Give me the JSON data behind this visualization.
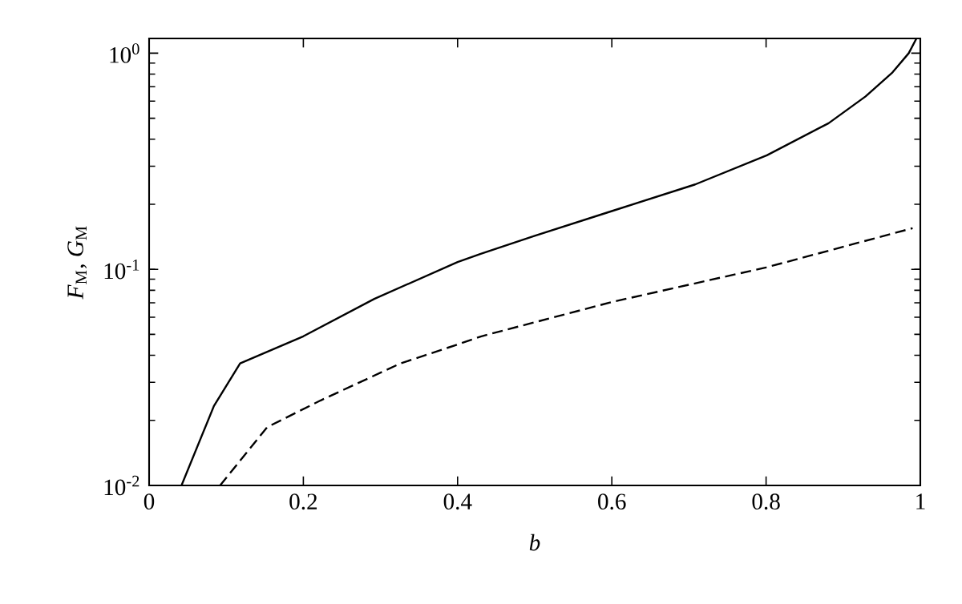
{
  "chart_data": {
    "type": "line",
    "xlabel": "b",
    "ylabel": "*F*$_{M}$, *G*$_{M}$",
    "log": "y",
    "grid": false,
    "marker": "none",
    "xlim": [
      0,
      1
    ],
    "ylim": [
      0.01,
      1.17
    ],
    "xticks": [
      0,
      0.2,
      0.4,
      0.6,
      0.8,
      1
    ],
    "yticks": [
      {
        "value": 0.01,
        "label": "10$^{-2}$"
      },
      {
        "value": 0.1,
        "label": "10$^{-1}$"
      },
      {
        "value": 1,
        "label": "10$^{0}$"
      }
    ],
    "series": [
      {
        "color": "#000000",
        "line_style": "solid",
        "x": [
          0.042,
          0.084,
          0.118,
          0.2,
          0.292,
          0.4,
          0.43,
          0.5,
          0.6,
          0.708,
          0.801,
          0.881,
          0.929,
          0.964,
          0.985,
          0.995
        ],
        "values": [
          0.01,
          0.0233,
          0.0367,
          0.049,
          0.073,
          0.108,
          0.118,
          0.143,
          0.186,
          0.247,
          0.337,
          0.474,
          0.631,
          0.815,
          1.0,
          1.17
        ]
      },
      {
        "color": "#000000",
        "line_style": "dashed",
        "x": [
          0.092,
          0.153,
          0.222,
          0.326,
          0.4,
          0.43,
          0.6,
          0.8,
          0.99
        ],
        "values": [
          0.01,
          0.0186,
          0.0247,
          0.0367,
          0.0449,
          0.0489,
          0.0706,
          0.102,
          0.155
        ]
      }
    ]
  }
}
